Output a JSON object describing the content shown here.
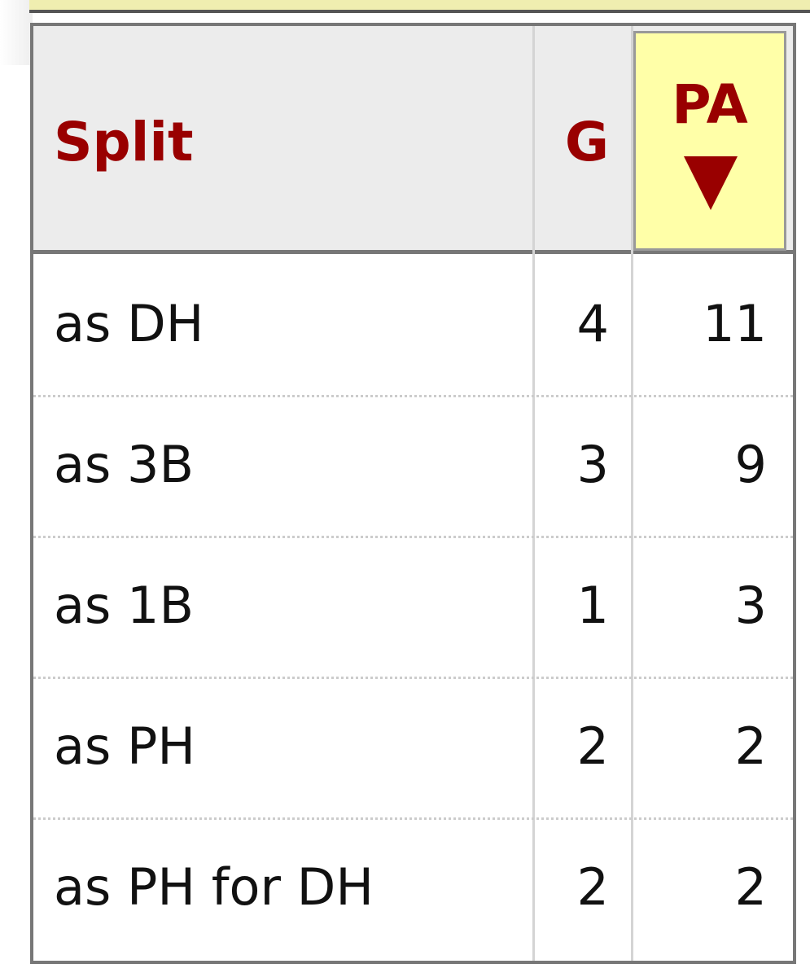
{
  "table": {
    "headers": [
      "Split",
      "G",
      "PA"
    ],
    "rows": [
      [
        "as DH",
        4,
        11
      ],
      [
        "as 3B",
        3,
        9
      ],
      [
        "as 1B",
        1,
        3
      ],
      [
        "as PH",
        2,
        2
      ],
      [
        "as PH for DH",
        2,
        2
      ]
    ]
  }
}
